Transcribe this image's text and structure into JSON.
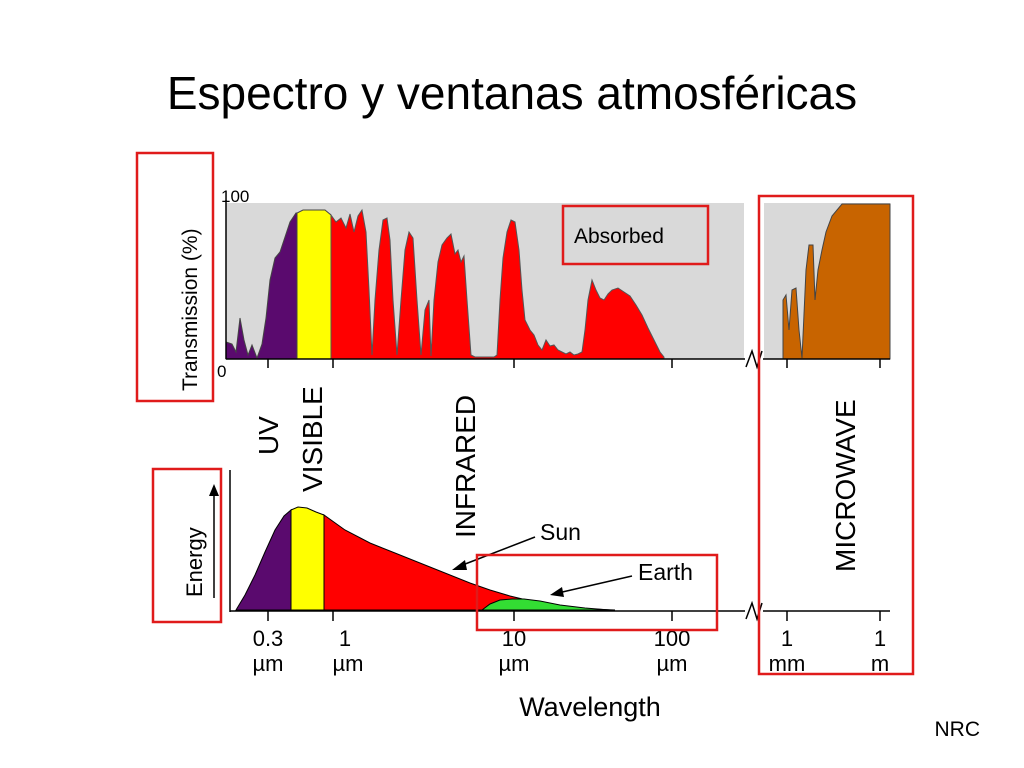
{
  "slide": {
    "title": "Espectro y ventanas atmosféricas",
    "credit": "NRC"
  },
  "transmission_plot": {
    "y_label": "Transmission (%)",
    "y_max_label": "100",
    "y_min_label": "0",
    "absorbed_label": "Absorbed"
  },
  "band_labels": {
    "uv": "UV",
    "visible": "VISIBLE",
    "infrared": "INFRARED",
    "microwave": "MICROWAVE"
  },
  "energy_plot": {
    "y_label": "Energy",
    "sun_label": "Sun",
    "earth_label": "Earth"
  },
  "x_axis": {
    "title": "Wavelength",
    "ticks": [
      {
        "value": "0.3",
        "unit": "µm"
      },
      {
        "value": "1",
        "unit": "µm"
      },
      {
        "value": "10",
        "unit": "µm"
      },
      {
        "value": "100",
        "unit": "µm"
      },
      {
        "value": "1",
        "unit": "mm"
      },
      {
        "value": "1",
        "unit": "m"
      }
    ]
  },
  "colors": {
    "uv": "#5a0a6e",
    "visible": "#ffff00",
    "infrared": "#ff0000",
    "microwave": "#c86400",
    "earth": "#33dd33",
    "absorbed_background": "#d9d9d9",
    "highlight_box": "#e01b1b"
  }
}
